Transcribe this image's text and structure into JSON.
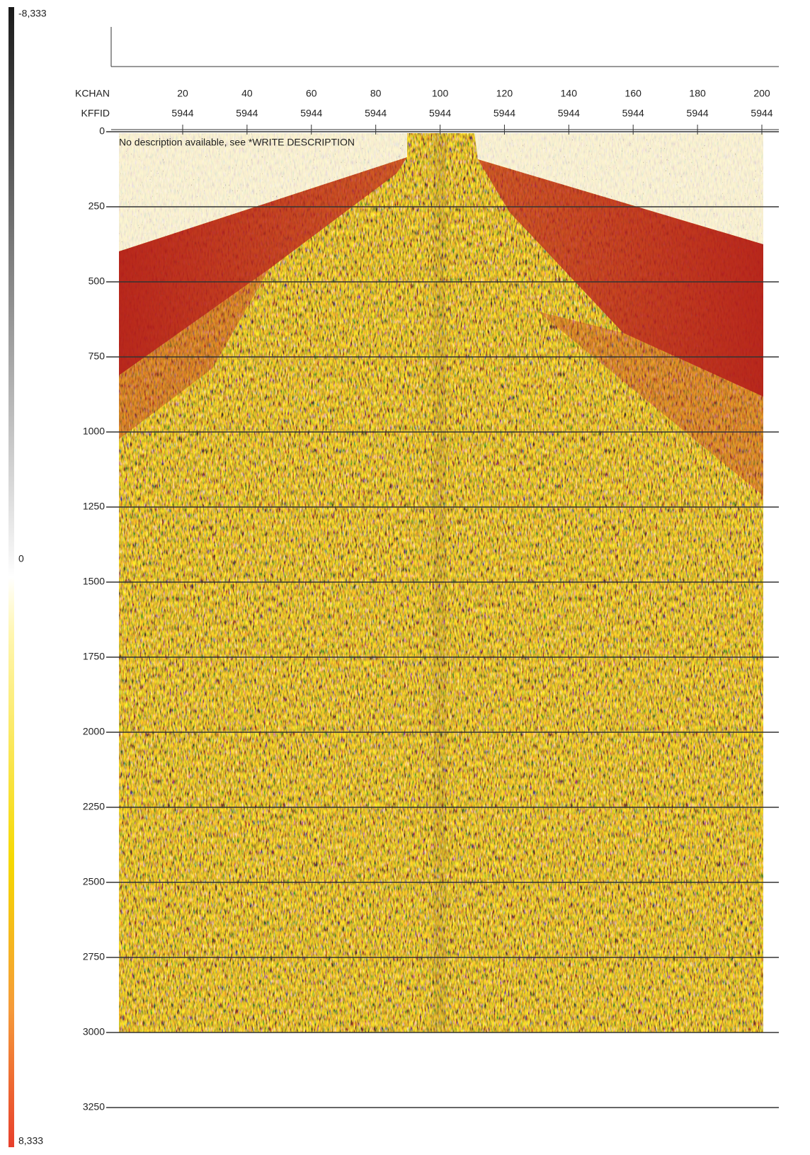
{
  "colorbar": {
    "top_label": "-8,333",
    "mid_label": "0",
    "bottom_label": "8,333"
  },
  "header": {
    "row_labels": [
      "KCHAN",
      "KFFID"
    ],
    "kchan": [
      20,
      40,
      60,
      80,
      100,
      120,
      140,
      160,
      180,
      200
    ],
    "kffid": [
      5944,
      5944,
      5944,
      5944,
      5944,
      5944,
      5944,
      5944,
      5944,
      5944
    ]
  },
  "time_axis": {
    "ticks": [
      0,
      250,
      500,
      750,
      1000,
      1250,
      1500,
      1750,
      2000,
      2250,
      2500,
      2750,
      3000,
      3250
    ]
  },
  "description": "No description available, see *WRITE DESCRIPTION"
}
